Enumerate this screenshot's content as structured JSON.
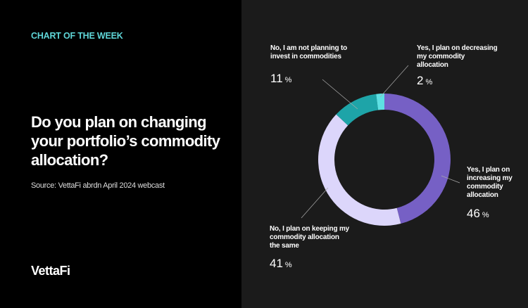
{
  "header": {
    "kicker": "CHART OF THE WEEK",
    "title": "Do you plan on changing your portfolio’s commodity allocation?",
    "source": "Source: VettaFi abrdn April 2024 webcast",
    "logo": "VettaFi"
  },
  "chart_data": {
    "type": "pie",
    "style": "donut",
    "title": "Do you plan on changing your portfolio’s commodity allocation?",
    "unit": "%",
    "slices": [
      {
        "label": "Yes, I plan on increasing my commodity allocation",
        "value": 46,
        "color": "#7660c5"
      },
      {
        "label": "No, I plan on keeping my commodity allocation the same",
        "value": 41,
        "color": "#dcd6fb"
      },
      {
        "label": "No, I am not planning to invest in commodities",
        "value": 11,
        "color": "#1ea4a8"
      },
      {
        "label": "Yes, I plan on decreasing my commodity allocation",
        "value": 2,
        "color": "#5ee0e3"
      }
    ]
  }
}
